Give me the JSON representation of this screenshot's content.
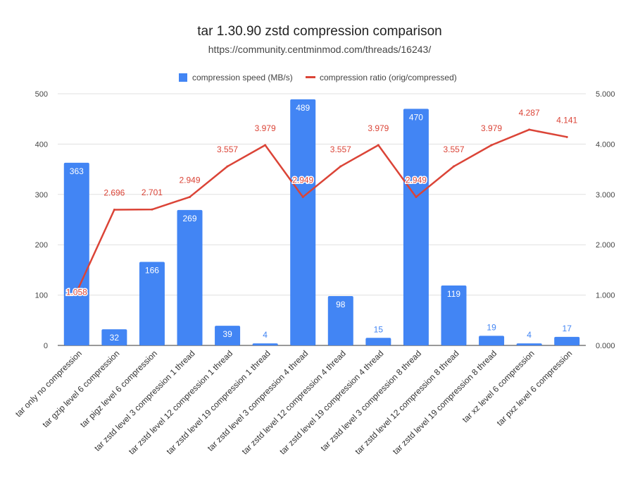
{
  "chart_data": {
    "type": "bar",
    "title": "tar 1.30.90 zstd compression comparison",
    "subtitle": "https://community.centminmod.com/threads/16243/",
    "legend_position": "top",
    "grid": true,
    "categories": [
      "tar only no compression",
      "tar gzip level 6 compression",
      "tar pigz level 6 compression",
      "tar zstd level 3 compression 1 thread",
      "tar zstd level 12 compression 1 thread",
      "tar zstd level 19 compression 1 thread",
      "tar zstd level 3 compression 4 thread",
      "tar zstd level 12 compression 4 thread",
      "tar zstd level 19 compression 4 thread",
      "tar zstd level 3 compression 8 thread",
      "tar zstd level 12 compression 8 thread",
      "tar zstd level 19 compression 8 thread",
      "tar xz level 6 compression",
      "tar pxz level 6 compression"
    ],
    "series": [
      {
        "name": "compression speed (MB/s)",
        "type": "bar",
        "axis": "left",
        "color": "#4285f4",
        "values": [
          363,
          32,
          166,
          269,
          39,
          4,
          489,
          98,
          15,
          470,
          119,
          19,
          4,
          17
        ],
        "labels": [
          "363",
          "32",
          "166",
          "269",
          "39",
          "4",
          "489",
          "98",
          "15",
          "470",
          "119",
          "19",
          "4",
          "17"
        ]
      },
      {
        "name": "compression ratio (orig/compressed)",
        "type": "line",
        "axis": "right",
        "color": "#db4437",
        "values": [
          1.058,
          2.696,
          2.701,
          2.949,
          3.557,
          3.979,
          2.949,
          3.557,
          3.979,
          2.949,
          3.557,
          3.979,
          4.287,
          4.141
        ],
        "labels": [
          "1.058",
          "2.696",
          "2.701",
          "2.949",
          "3.557",
          "3.979",
          "2.949",
          "3.557",
          "3.979",
          "2.949",
          "3.557",
          "3.979",
          "4.287",
          "4.141"
        ]
      }
    ],
    "ylim": [
      0,
      500
    ],
    "yticks": [
      "0",
      "100",
      "200",
      "300",
      "400",
      "500"
    ],
    "y2lim": [
      0,
      5
    ],
    "y2ticks": [
      "0.000",
      "1.000",
      "2.000",
      "3.000",
      "4.000",
      "5.000"
    ]
  }
}
